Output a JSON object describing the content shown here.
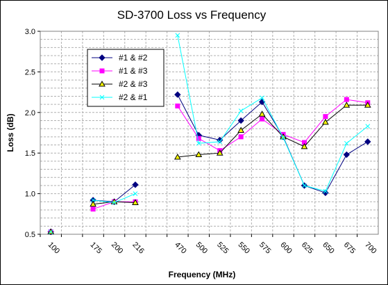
{
  "chart_data": {
    "type": "line",
    "title": "SD-3700 Loss vs Frequency",
    "xlabel": "Frequency (MHz)",
    "ylabel": "Loss (dB)",
    "categories": [
      "100",
      "",
      "175",
      "200",
      "216",
      "",
      "470",
      "500",
      "525",
      "550",
      "575",
      "600",
      "625",
      "650",
      "675",
      "700"
    ],
    "ylim": [
      0.5,
      3.0
    ],
    "yticks": [
      "0.5",
      "1.0",
      "1.5",
      "2.0",
      "2.5",
      "3.0"
    ],
    "grid": true,
    "legend_position": "upper-left",
    "series": [
      {
        "name": "#1 & #2",
        "color": "#000080",
        "marker": "diamond",
        "values": [
          0.53,
          null,
          0.92,
          0.9,
          1.11,
          null,
          2.22,
          1.72,
          1.66,
          1.9,
          2.13,
          1.7,
          1.1,
          1.01,
          1.48,
          1.64
        ]
      },
      {
        "name": "#1 & #3",
        "color": "#ff00ff",
        "marker": "square",
        "values": [
          0.53,
          null,
          0.81,
          0.9,
          0.9,
          null,
          2.08,
          1.68,
          1.53,
          1.7,
          1.92,
          1.73,
          1.63,
          1.95,
          2.16,
          2.12
        ]
      },
      {
        "name": "#2 & #3",
        "color": "#000000",
        "marker": "triangle",
        "values": [
          0.53,
          null,
          0.87,
          0.9,
          0.89,
          null,
          1.45,
          1.48,
          1.5,
          1.78,
          1.98,
          1.7,
          1.58,
          1.88,
          2.09,
          2.09
        ]
      },
      {
        "name": "#2 & #1",
        "color": "#00ffff",
        "marker": "x",
        "values": [
          0.53,
          null,
          0.92,
          0.89,
          1.0,
          null,
          2.95,
          1.62,
          1.64,
          2.02,
          2.18,
          1.69,
          1.1,
          1.03,
          1.62,
          1.83
        ]
      }
    ]
  }
}
